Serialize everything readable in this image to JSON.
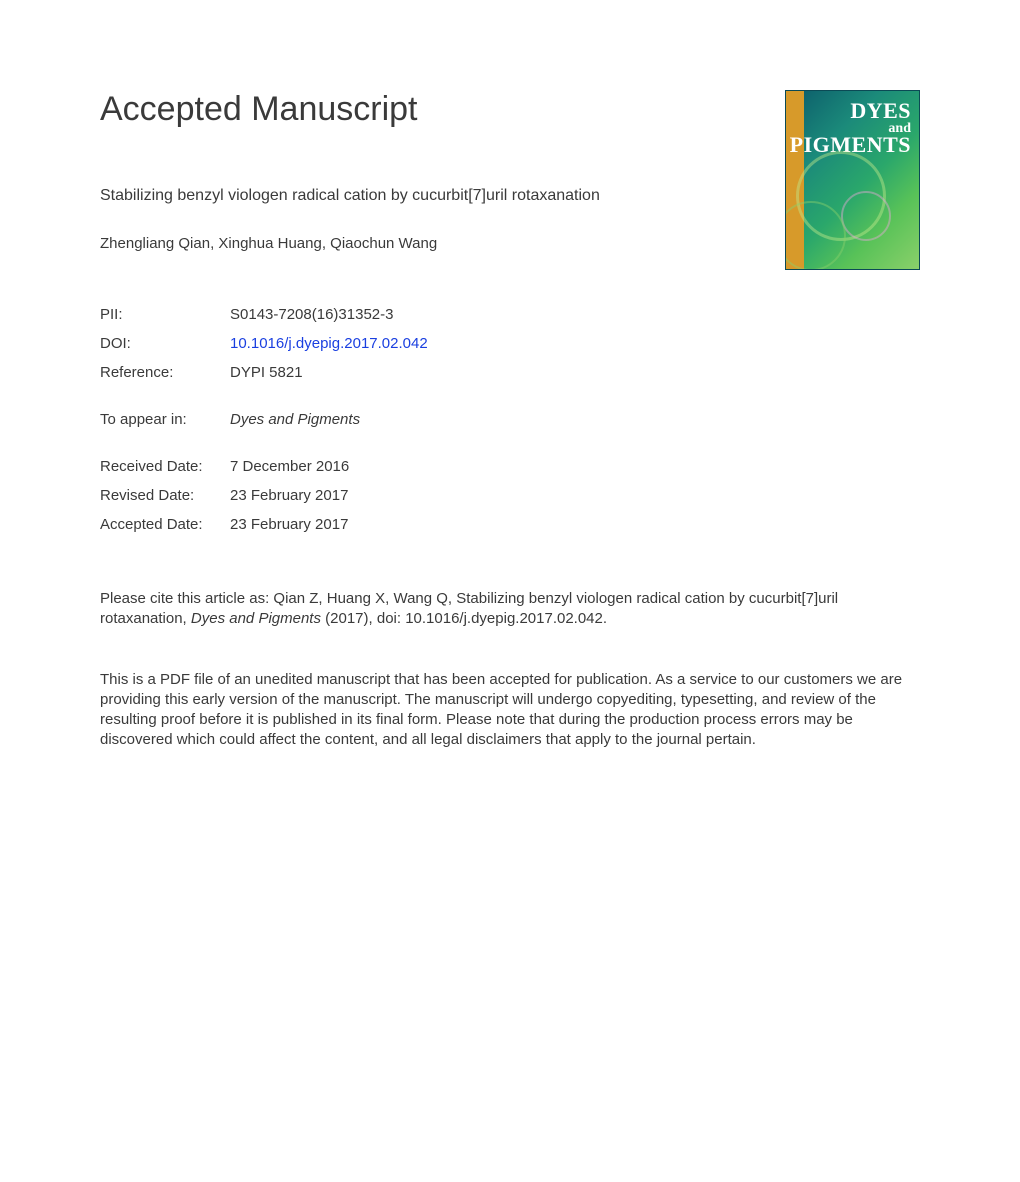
{
  "heading": "Accepted Manuscript",
  "article_title": "Stabilizing benzyl viologen radical cation by cucurbit[7]uril rotaxanation",
  "authors": "Zhengliang Qian, Xinghua Huang, Qiaochun Wang",
  "meta": {
    "pii_label": "PII:",
    "pii_value": "S0143-7208(16)31352-3",
    "doi_label": "DOI:",
    "doi_value": "10.1016/j.dyepig.2017.02.042",
    "ref_label": "Reference:",
    "ref_value": "DYPI 5821",
    "appear_label": "To appear in:",
    "appear_value": "Dyes and Pigments",
    "received_label": "Received Date:",
    "received_value": "7 December 2016",
    "revised_label": "Revised Date:",
    "revised_value": "23 February 2017",
    "accepted_label": "Accepted Date:",
    "accepted_value": "23 February 2017"
  },
  "citation_prefix": "Please cite this article as: Qian Z, Huang X, Wang Q, Stabilizing benzyl viologen radical cation by cucurbit[7]uril rotaxanation, ",
  "citation_journal": "Dyes and Pigments",
  "citation_suffix": " (2017), doi: 10.1016/j.dyepig.2017.02.042.",
  "disclaimer": "This is a PDF file of an unedited manuscript that has been accepted for publication. As a service to our customers we are providing this early version of the manuscript. The manuscript will undergo copyediting, typesetting, and review of the resulting proof before it is published in its final form. Please note that during the production process errors may be discovered which could affect the content, and all legal disclaimers that apply to the journal pertain.",
  "cover": {
    "line1": "DYES",
    "line2": "and",
    "line3": "PIGMENTS"
  },
  "colors": {
    "text": "#3a3a3a",
    "link": "#1a3fe0",
    "background": "#ffffff"
  },
  "typography": {
    "heading_fontsize": 34,
    "body_fontsize": 15,
    "title_fontsize": 16
  }
}
